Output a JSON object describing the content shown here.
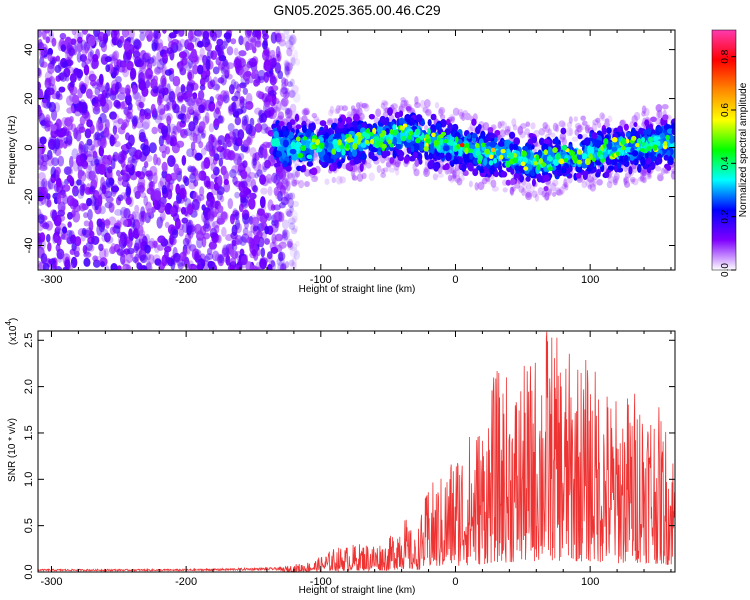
{
  "title": "GN05.2025.365.00.46.C29",
  "chart_data": [
    {
      "type": "heatmap",
      "xlabel": "Height of straight line (km)",
      "ylabel": "Frequency (Hz)",
      "xlim": [
        -310,
        163
      ],
      "ylim": [
        -50,
        48
      ],
      "x_ticks": [
        -300,
        -200,
        -100,
        0,
        100
      ],
      "y_ticks": [
        -40,
        -20,
        0,
        20,
        40
      ],
      "colorbar": {
        "label": "Normalized spectral amplitude",
        "ticks": [
          0.0,
          0.2,
          0.4,
          0.6,
          0.8
        ],
        "tick_labels": [
          "0.0",
          "0.2",
          "0.4",
          "0.6",
          "0.8"
        ],
        "range": [
          0.0,
          0.9
        ],
        "colormap": [
          "#ffffff",
          "#7f00ff",
          "#0000ff",
          "#00ffff",
          "#00ff00",
          "#ffff00",
          "#ff8800",
          "#ff0000",
          "#ff3ab0"
        ]
      },
      "regions": [
        {
          "x_range": [
            -310,
            -120
          ],
          "freq_range": [
            -50,
            48
          ],
          "amplitude_range": [
            0.0,
            0.12
          ],
          "pattern": "diffuse noise"
        },
        {
          "x_range": [
            -135,
            163
          ],
          "freq_range": [
            -12,
            12
          ],
          "amplitude_range": [
            0.05,
            0.9
          ],
          "pattern": "band centered near 0 Hz"
        }
      ],
      "band_center_hz": [
        {
          "x": -130,
          "y": 0
        },
        {
          "x": -100,
          "y": 0
        },
        {
          "x": -75,
          "y": 2
        },
        {
          "x": -50,
          "y": 4
        },
        {
          "x": -35,
          "y": 6
        },
        {
          "x": -20,
          "y": 3
        },
        {
          "x": 0,
          "y": 1
        },
        {
          "x": 20,
          "y": -2
        },
        {
          "x": 40,
          "y": -3
        },
        {
          "x": 60,
          "y": -6
        },
        {
          "x": 80,
          "y": -4
        },
        {
          "x": 100,
          "y": -2
        },
        {
          "x": 130,
          "y": 0
        },
        {
          "x": 160,
          "y": 2
        }
      ]
    },
    {
      "type": "line",
      "xlabel": "Height of straight line (km)",
      "ylabel": "SNR (10 * v/v)",
      "y_multiplier": "(x10",
      "y_exponent": "4",
      "y_multiplier_close": ")",
      "xlim": [
        -310,
        163
      ],
      "ylim": [
        0.0,
        2.6
      ],
      "x_ticks": [
        -300,
        -200,
        -100,
        0,
        100
      ],
      "y_ticks": [
        0.0,
        0.5,
        1.0,
        1.5,
        2.0,
        2.5
      ],
      "y_tick_labels": [
        "0.0",
        "0.5",
        "1.0",
        "1.5",
        "2.0",
        "2.5"
      ],
      "series": [
        {
          "color": "#ee3333",
          "envelope": [
            {
              "x": -310,
              "y": 0.03
            },
            {
              "x": -200,
              "y": 0.03
            },
            {
              "x": -130,
              "y": 0.05
            },
            {
              "x": -105,
              "y": 0.12
            },
            {
              "x": -90,
              "y": 0.25
            },
            {
              "x": -70,
              "y": 0.3
            },
            {
              "x": -50,
              "y": 0.32
            },
            {
              "x": -40,
              "y": 0.65
            },
            {
              "x": -30,
              "y": 0.35
            },
            {
              "x": -20,
              "y": 0.9
            },
            {
              "x": -10,
              "y": 1.0
            },
            {
              "x": 0,
              "y": 1.3
            },
            {
              "x": 20,
              "y": 1.6
            },
            {
              "x": 30,
              "y": 2.1
            },
            {
              "x": 45,
              "y": 2.0
            },
            {
              "x": 60,
              "y": 2.3
            },
            {
              "x": 68,
              "y": 2.6
            },
            {
              "x": 80,
              "y": 2.3
            },
            {
              "x": 100,
              "y": 2.2
            },
            {
              "x": 120,
              "y": 1.8
            },
            {
              "x": 140,
              "y": 2.0
            },
            {
              "x": 155,
              "y": 1.6
            },
            {
              "x": 163,
              "y": 1.3
            }
          ]
        }
      ]
    }
  ]
}
